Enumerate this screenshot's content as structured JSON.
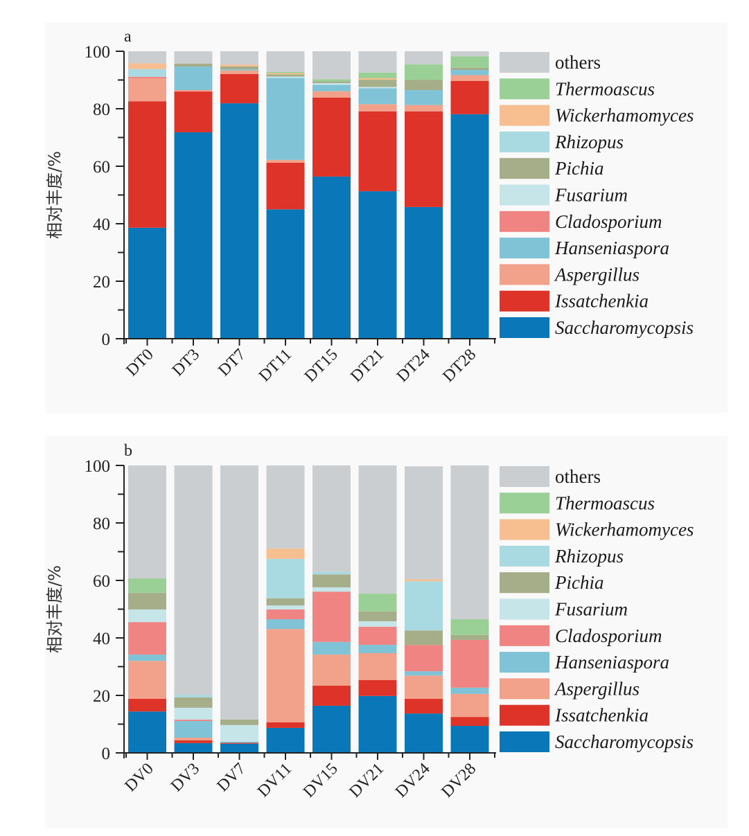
{
  "chart_data": [
    {
      "type": "bar",
      "stacked": true,
      "panel_label": "a",
      "title": "",
      "xlabel": "",
      "ylabel": "相对丰度/%",
      "ylim": [
        0,
        100
      ],
      "yticks": [
        0,
        20,
        40,
        60,
        80,
        100
      ],
      "grid": false,
      "legend_position": "right",
      "categories": [
        "DT0",
        "DT3",
        "DT7",
        "DT11",
        "DT15",
        "DT21",
        "DT24",
        "DT28"
      ],
      "series": [
        {
          "name": "Saccharomycopsis",
          "color": "#0a78b8",
          "italic": true,
          "values": [
            38.6,
            71.8,
            81.9,
            45.0,
            56.4,
            51.3,
            45.8,
            78.1
          ]
        },
        {
          "name": "Issatchenkia",
          "color": "#dd3328",
          "italic": true,
          "values": [
            44.0,
            14.2,
            10.2,
            16.2,
            27.5,
            27.8,
            33.3,
            11.6
          ]
        },
        {
          "name": "Aspergillus",
          "color": "#f2a28a",
          "italic": true,
          "values": [
            8.0,
            0.5,
            1.2,
            1.0,
            2.2,
            2.5,
            2.2,
            2.0
          ]
        },
        {
          "name": "Hanseniaspora",
          "color": "#80c3d6",
          "italic": true,
          "values": [
            0.0,
            8.2,
            0.4,
            28.5,
            2.2,
            5.5,
            5.2,
            1.8
          ]
        },
        {
          "name": "Cladosporium",
          "color": "#f08482",
          "italic": true,
          "values": [
            0.5,
            0.0,
            0.0,
            0.0,
            0.0,
            0.0,
            0.0,
            0.0
          ]
        },
        {
          "name": "Fusarium",
          "color": "#c5e5e8",
          "italic": true,
          "values": [
            0.0,
            0.0,
            0.0,
            0.5,
            0.6,
            0.5,
            0.0,
            0.0
          ]
        },
        {
          "name": "Pichia",
          "color": "#a6ad89",
          "italic": true,
          "values": [
            0.0,
            1.0,
            1.0,
            0.8,
            0.6,
            2.5,
            3.5,
            0.8
          ]
        },
        {
          "name": "Rhizopus",
          "color": "#a9dae1",
          "italic": true,
          "values": [
            2.7,
            0.0,
            0.0,
            0.0,
            0.0,
            0.0,
            0.0,
            0.0
          ]
        },
        {
          "name": "Wickerhamomyces",
          "color": "#f7be90",
          "italic": true,
          "values": [
            2.0,
            0.0,
            0.6,
            0.4,
            0.0,
            0.5,
            0.0,
            0.0
          ]
        },
        {
          "name": "Thermoascus",
          "color": "#9acf96",
          "italic": true,
          "values": [
            0.0,
            0.0,
            0.0,
            0.4,
            0.8,
            2.0,
            5.4,
            3.9
          ]
        },
        {
          "name": "others",
          "color": "#cbced1",
          "italic": false,
          "values": [
            4.2,
            4.3,
            4.7,
            7.2,
            9.7,
            7.4,
            4.6,
            1.8
          ]
        }
      ]
    },
    {
      "type": "bar",
      "stacked": true,
      "panel_label": "b",
      "title": "",
      "xlabel": "",
      "ylabel": "相对丰度/%",
      "ylim": [
        0,
        100
      ],
      "yticks": [
        0,
        20,
        40,
        60,
        80,
        100
      ],
      "grid": false,
      "legend_position": "right",
      "categories": [
        "DV0",
        "DV3",
        "DV7",
        "DV11",
        "DV15",
        "DV21",
        "DV24",
        "DV28"
      ],
      "series": [
        {
          "name": "Saccharomycopsis",
          "color": "#0a78b8",
          "italic": true,
          "values": [
            14.4,
            3.4,
            3.2,
            8.7,
            16.4,
            19.8,
            13.7,
            9.4
          ]
        },
        {
          "name": "Issatchenkia",
          "color": "#dd3328",
          "italic": true,
          "values": [
            4.4,
            1.0,
            0.3,
            1.9,
            7.0,
            5.5,
            5.1,
            3.1
          ]
        },
        {
          "name": "Aspergillus",
          "color": "#f2a28a",
          "italic": true,
          "values": [
            13.2,
            0.9,
            0.0,
            32.5,
            10.8,
            9.4,
            8.1,
            8.0
          ]
        },
        {
          "name": "Hanseniaspora",
          "color": "#80c3d6",
          "italic": true,
          "values": [
            2.2,
            5.8,
            0.4,
            3.4,
            4.4,
            2.9,
            1.5,
            2.2
          ]
        },
        {
          "name": "Cladosporium",
          "color": "#f08482",
          "italic": true,
          "values": [
            11.3,
            0.5,
            0.0,
            3.4,
            17.5,
            6.3,
            9.1,
            16.6
          ]
        },
        {
          "name": "Fusarium",
          "color": "#c5e5e8",
          "italic": true,
          "values": [
            4.4,
            4.1,
            5.8,
            1.4,
            1.5,
            1.9,
            0.0,
            0.0
          ]
        },
        {
          "name": "Pichia",
          "color": "#a6ad89",
          "italic": true,
          "values": [
            5.8,
            3.6,
            1.9,
            2.5,
            4.5,
            3.4,
            5.1,
            1.7
          ]
        },
        {
          "name": "Rhizopus",
          "color": "#a9dae1",
          "italic": true,
          "values": [
            0.0,
            0.9,
            0.0,
            13.7,
            0.9,
            0.0,
            17.1,
            0.0
          ]
        },
        {
          "name": "Wickerhamomyces",
          "color": "#f7be90",
          "italic": true,
          "values": [
            0.0,
            0.0,
            0.0,
            3.6,
            0.0,
            0.0,
            0.7,
            0.0
          ]
        },
        {
          "name": "Thermoascus",
          "color": "#9acf96",
          "italic": true,
          "values": [
            5.0,
            0.0,
            0.0,
            0.0,
            0.0,
            6.2,
            0.0,
            5.5
          ]
        },
        {
          "name": "others",
          "color": "#cbced1",
          "italic": false,
          "values": [
            39.3,
            79.8,
            88.4,
            28.9,
            37.0,
            44.6,
            39.3,
            53.5
          ]
        }
      ]
    }
  ]
}
